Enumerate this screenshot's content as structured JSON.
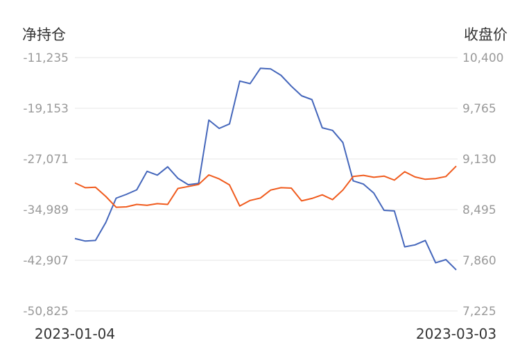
{
  "chart_data": {
    "type": "line",
    "left_axis_title": "净持仓",
    "right_axis_title": "收盘价",
    "left_ticks": [
      "-11,235",
      "-19,153",
      "-27,071",
      "-34,989",
      "-42,907",
      "-50,825"
    ],
    "right_ticks": [
      "10,400",
      "9,765",
      "9,130",
      "8,495",
      "7,860",
      "7,225"
    ],
    "left_ylim": [
      -50825,
      -11235
    ],
    "right_ylim": [
      7225,
      10400
    ],
    "x_start_label": "2023-01-04",
    "x_end_label": "2023-03-03",
    "grid": true,
    "series": [
      {
        "axis": "left",
        "color": "#4466bb",
        "values": [
          -39500,
          -39900,
          -39800,
          -37000,
          -33200,
          -32600,
          -31900,
          -29000,
          -29600,
          -28300,
          -30100,
          -31100,
          -30900,
          -21000,
          -22300,
          -21600,
          -14900,
          -15300,
          -12900,
          -13000,
          -14000,
          -15700,
          -17200,
          -17800,
          -22200,
          -22600,
          -24500,
          -30500,
          -31000,
          -32400,
          -35100,
          -35200,
          -40800,
          -40500,
          -39800,
          -43300,
          -42800,
          -44400
        ]
      },
      {
        "axis": "right",
        "color": "#f05a1c",
        "values": [
          8830,
          8770,
          8775,
          8660,
          8525,
          8530,
          8560,
          8550,
          8570,
          8560,
          8760,
          8785,
          8810,
          8930,
          8880,
          8805,
          8540,
          8610,
          8640,
          8740,
          8770,
          8765,
          8605,
          8635,
          8680,
          8620,
          8740,
          8910,
          8925,
          8900,
          8915,
          8865,
          8970,
          8905,
          8875,
          8885,
          8910,
          9040
        ]
      }
    ]
  }
}
